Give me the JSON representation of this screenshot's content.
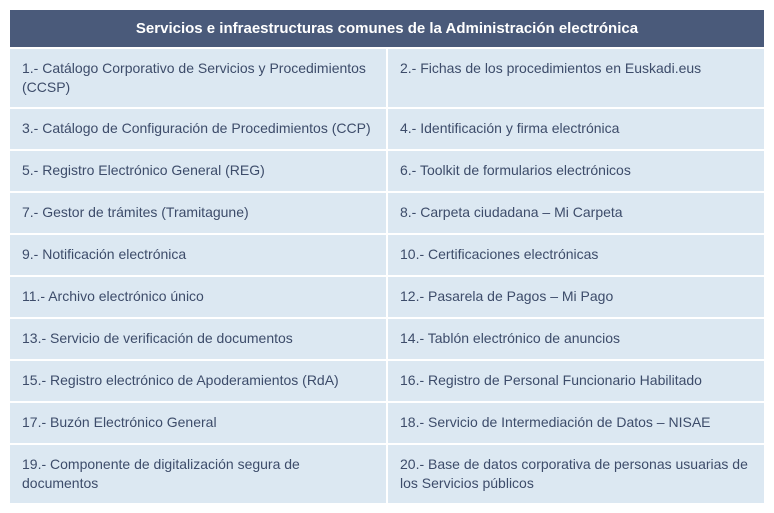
{
  "colors": {
    "header_bg": "#4a5a7a",
    "header_text": "#ffffff",
    "cell_bg": "#dce8f2",
    "cell_text": "#3d4c6a",
    "page_bg": "#ffffff"
  },
  "typography": {
    "header_fontsize": 15,
    "cell_fontsize": 14,
    "font_family": "Arial"
  },
  "table": {
    "type": "table",
    "columns": 2,
    "title": "Servicios e infraestructuras comunes de la Administración electrónica",
    "rows": [
      [
        "1.- Catálogo Corporativo de Servicios y Procedimientos (CCSP)",
        "2.- Fichas de los procedimientos en Euskadi.eus"
      ],
      [
        "3.- Catálogo de Configuración de Procedimientos (CCP)",
        "4.- Identificación y firma electrónica"
      ],
      [
        "5.- Registro Electrónico General (REG)",
        "6.- Toolkit de formularios electrónicos"
      ],
      [
        "7.- Gestor de trámites (Tramitagune)",
        "8.- Carpeta ciudadana – Mi Carpeta"
      ],
      [
        "9.- Notificación electrónica",
        "10.- Certificaciones electrónicas"
      ],
      [
        "11.- Archivo electrónico único",
        "12.- Pasarela de Pagos – Mi Pago"
      ],
      [
        "13.- Servicio de verificación de documentos",
        "14.- Tablón electrónico de anuncios"
      ],
      [
        "15.- Registro electrónico de Apoderamientos (RdA)",
        "16.- Registro de Personal Funcionario Habilitado"
      ],
      [
        "17.- Buzón Electrónico General",
        "18.- Servicio de Intermediación de Datos – NISAE"
      ],
      [
        "19.- Componente de digitalización segura de documentos",
        "20.- Base de datos corporativa de personas usuarias de los Servicios públicos"
      ]
    ]
  }
}
